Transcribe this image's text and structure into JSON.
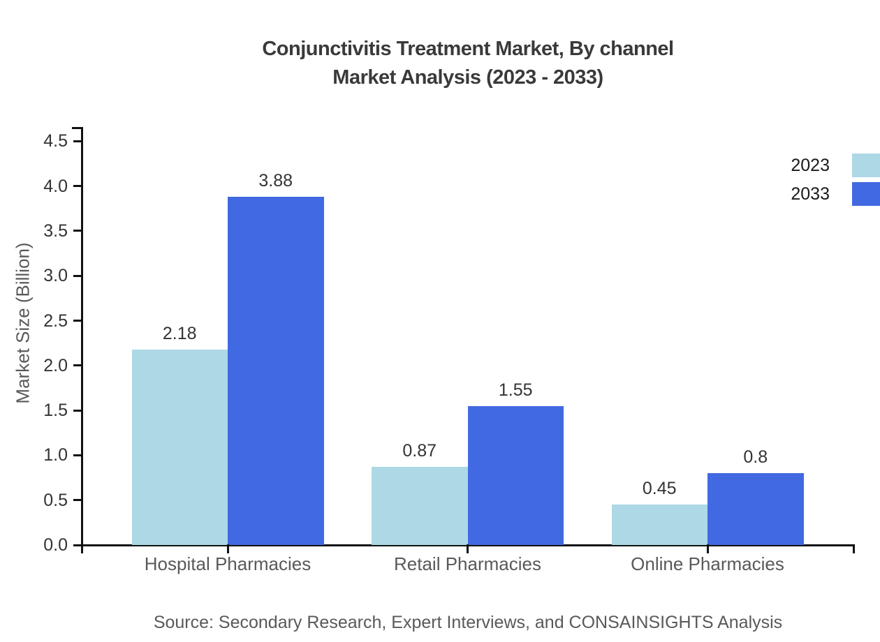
{
  "page": {
    "background": "#ffffff"
  },
  "header": {
    "title_line1": "Conjunctivitis Treatment Market, By channel",
    "title_line2": "Market Analysis (2023 - 2033)"
  },
  "chart_data": {
    "type": "bar",
    "title": "Conjunctivitis Treatment Market, By channel",
    "subtitle": "Market Analysis (2023 - 2033)",
    "ylabel": "Market Size (Billion)",
    "xlabel": "",
    "categories": [
      "Hospital Pharmacies",
      "Retail Pharmacies",
      "Online Pharmacies"
    ],
    "series": [
      {
        "name": "2023",
        "color": "#ADD8E6",
        "values": [
          2.18,
          0.87,
          0.45
        ],
        "value_labels": [
          "2.18",
          "0.87",
          "0.45"
        ]
      },
      {
        "name": "2033",
        "color": "#4169E1",
        "values": [
          3.88,
          1.55,
          0.8
        ],
        "value_labels": [
          "3.88",
          "1.55",
          "0.8"
        ]
      }
    ],
    "ylim": [
      0,
      4.5
    ],
    "ytick_labels": [
      "0.0",
      "0.5",
      "1.0",
      "1.5",
      "2.0",
      "2.5",
      "3.0",
      "3.5",
      "4.0",
      "4.5"
    ],
    "grid": false,
    "legend_position": "top-right",
    "axis_color": "#111111",
    "tick_label_color": "#333333",
    "category_label_color": "#595959"
  },
  "footer": {
    "source_note": "Source: Secondary Research, Expert Interviews, and CONSAINSIGHTS Analysis"
  }
}
